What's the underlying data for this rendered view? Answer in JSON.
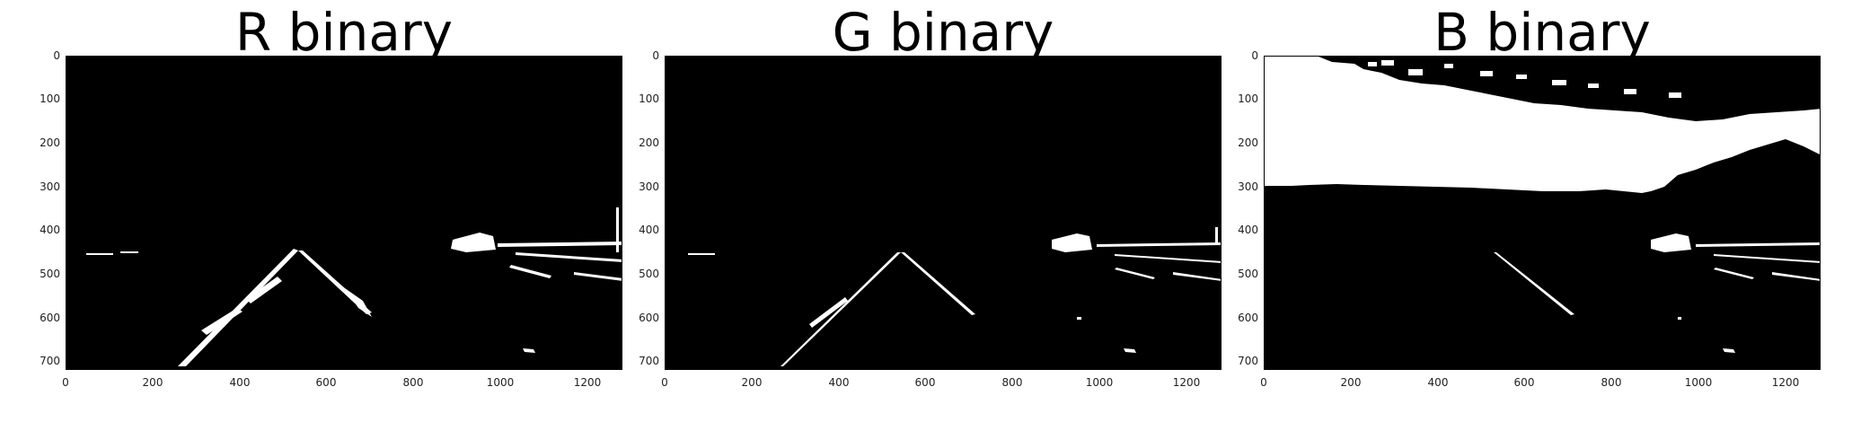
{
  "panels": [
    {
      "id": "r",
      "title": "R binary",
      "x_ticks": [
        "0",
        "200",
        "400",
        "600",
        "800",
        "1000",
        "1200"
      ],
      "y_ticks": [
        "0",
        "100",
        "200",
        "300",
        "400",
        "500",
        "600",
        "700"
      ]
    },
    {
      "id": "g",
      "title": "G binary",
      "x_ticks": [
        "0",
        "200",
        "400",
        "600",
        "800",
        "1000",
        "1200"
      ],
      "y_ticks": [
        "0",
        "100",
        "200",
        "300",
        "400",
        "500",
        "600",
        "700"
      ]
    },
    {
      "id": "b",
      "title": "B binary",
      "x_ticks": [
        "0",
        "200",
        "400",
        "600",
        "800",
        "1000",
        "1200"
      ],
      "y_ticks": [
        "0",
        "100",
        "200",
        "300",
        "400",
        "500",
        "600",
        "700"
      ]
    }
  ],
  "colors": {
    "background": "#000000",
    "foreground": "#ffffff"
  }
}
